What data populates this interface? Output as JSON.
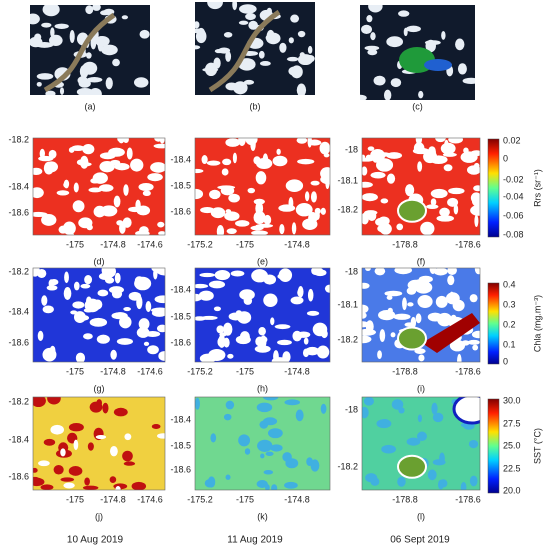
{
  "top_panels": [
    {
      "label": "(a)"
    },
    {
      "label": "(b)"
    },
    {
      "label": "(c)"
    }
  ],
  "rows": [
    {
      "panels": [
        {
          "label": "(d)",
          "yticks": [
            "-18.2",
            "-18.4",
            "-18.6"
          ],
          "xticks": [
            "-175",
            "-174.8",
            "-174.6"
          ]
        },
        {
          "label": "(e)",
          "yticks": [
            "-18.4",
            "-18.5",
            "-18.6"
          ],
          "xticks": [
            "-175.2",
            "-175",
            "-174.8"
          ]
        },
        {
          "label": "(f)",
          "yticks": [
            "-18",
            "-18.1",
            "-18.2"
          ],
          "xticks": [
            "-178.8",
            "-178.6"
          ]
        }
      ],
      "colorbar": {
        "label": "Rrs (sr⁻¹)",
        "ticks": [
          "0.02",
          "0",
          "-0.02",
          "-0.04",
          "-0.06",
          "-0.08"
        ]
      }
    },
    {
      "panels": [
        {
          "label": "(g)",
          "yticks": [
            "-18.2",
            "-18.4",
            "-18.6"
          ],
          "xticks": [
            "-175",
            "-174.8",
            "-174.6"
          ]
        },
        {
          "label": "(h)",
          "yticks": [
            "-18.4",
            "-18.5",
            "-18.6"
          ],
          "xticks": [
            "-175.2",
            "-175",
            "-174.8"
          ]
        },
        {
          "label": "(i)",
          "yticks": [
            "-18",
            "-18.1",
            "-18.2"
          ],
          "xticks": [
            "-178.8",
            "-178.6"
          ]
        }
      ],
      "colorbar": {
        "label": "Chla (mg.m⁻³)",
        "ticks": [
          "0.4",
          "0.3",
          "0.2",
          "0.1",
          "0"
        ]
      }
    },
    {
      "panels": [
        {
          "label": "(j)",
          "yticks": [
            "-18.2",
            "-18.4",
            "-18.6"
          ],
          "xticks": [
            "-175",
            "-174.8",
            "-174.6"
          ]
        },
        {
          "label": "(k)",
          "yticks": [
            "-18.4",
            "-18.5",
            "-18.6"
          ],
          "xticks": [
            "-175.2",
            "-175",
            "-174.8"
          ]
        },
        {
          "label": "(l)",
          "yticks": [
            "-18",
            "-18.2"
          ],
          "xticks": [
            "-178.8",
            "-178.6"
          ]
        }
      ],
      "colorbar": {
        "label": "SST (°C)",
        "ticks": [
          "30.0",
          "27.5",
          "25.0",
          "22.5",
          "20.0"
        ]
      }
    }
  ],
  "dates": [
    "10 Aug 2019",
    "11 Aug 2019",
    "06 Sept 2019"
  ]
}
